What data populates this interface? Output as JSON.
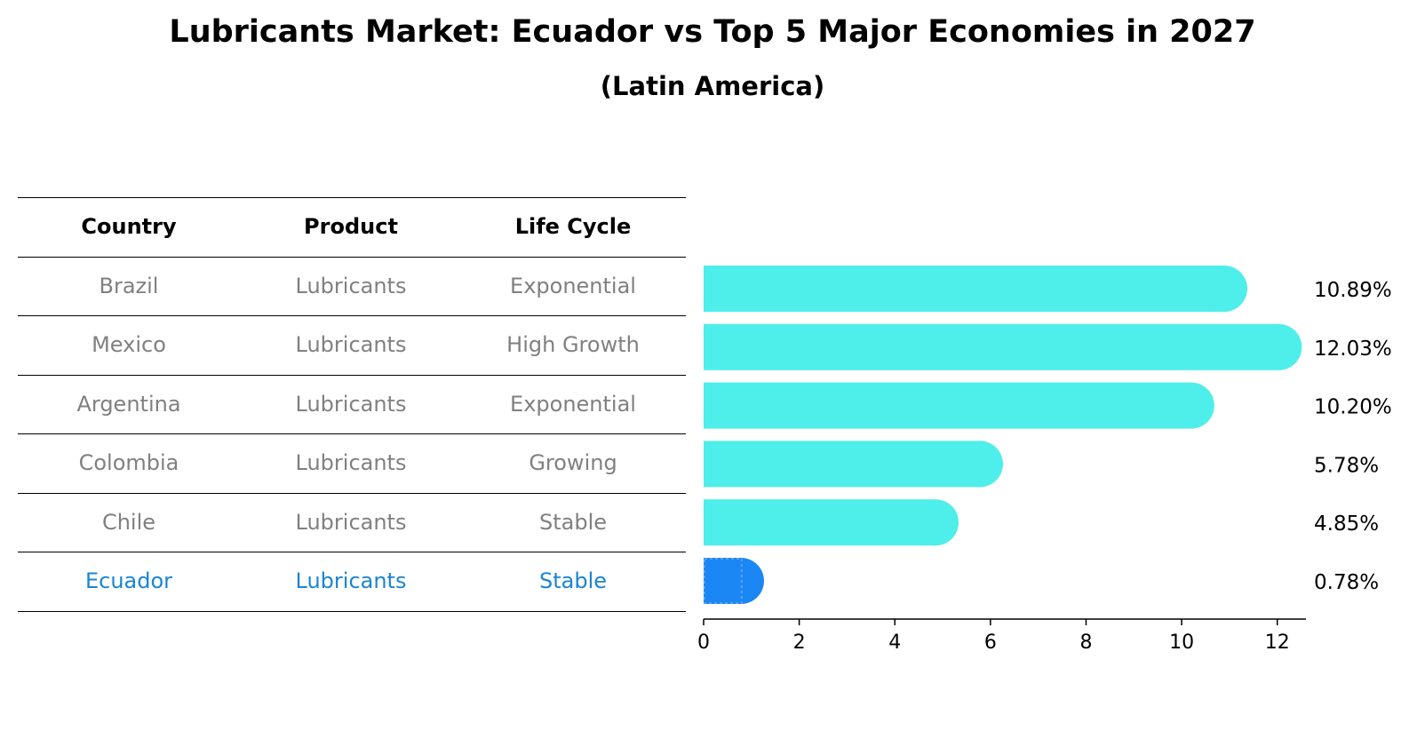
{
  "title": "Lubricants Market: Ecuador vs Top 5 Major Economies in 2027",
  "subtitle": "(Latin America)",
  "table": {
    "headers": [
      "Country",
      "Product",
      "Life Cycle"
    ],
    "rows": [
      [
        "Brazil",
        "Lubricants",
        "Exponential"
      ],
      [
        "Mexico",
        "Lubricants",
        "High Growth"
      ],
      [
        "Argentina",
        "Lubricants",
        "Exponential"
      ],
      [
        "Colombia",
        "Lubricants",
        "Growing"
      ],
      [
        "Chile",
        "Lubricants",
        "Stable"
      ],
      [
        "Ecuador",
        "Lubricants",
        "Stable"
      ]
    ],
    "highlight_row": 5
  },
  "colors": {
    "bar": "#4eeeea",
    "highlight_bar": "#1a87f5",
    "highlight_text": "#1a84d4",
    "muted_text": "#808080"
  },
  "chart_data": {
    "type": "bar",
    "orientation": "horizontal",
    "categories": [
      "Brazil",
      "Mexico",
      "Argentina",
      "Colombia",
      "Chile",
      "Ecuador"
    ],
    "values": [
      10.89,
      12.03,
      10.2,
      5.78,
      4.85,
      0.78
    ],
    "value_labels": [
      "10.89%",
      "12.03%",
      "10.20%",
      "5.78%",
      "4.85%",
      "0.78%"
    ],
    "highlight": "Ecuador",
    "xlim": [
      0,
      12.6
    ],
    "xticks": [
      0,
      2,
      4,
      6,
      8,
      10,
      12
    ],
    "title": "Lubricants Market: Ecuador vs Top 5 Major Economies in 2027",
    "xlabel": "",
    "ylabel": ""
  }
}
